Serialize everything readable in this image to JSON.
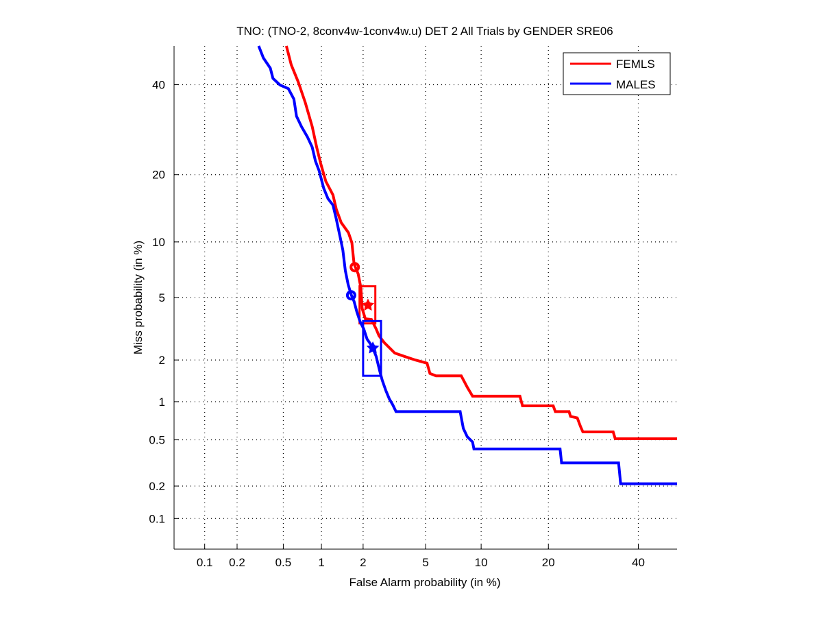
{
  "chart_data": {
    "type": "line",
    "subtype": "DET (probit-scaled axes)",
    "title": "TNO: (TNO-2, 8conv4w-1conv4w.u) DET 2 All Trials by GENDER SRE06",
    "xlabel": "False Alarm probability (in %)",
    "ylabel": "Miss probability (in %)",
    "x_scale": "probit",
    "y_scale": "probit",
    "xlim": [
      0.05,
      50
    ],
    "ylim": [
      0.05,
      50
    ],
    "x_ticks": [
      0.1,
      0.2,
      0.5,
      1,
      2,
      5,
      10,
      20,
      40
    ],
    "x_tick_labels": [
      "0.1",
      "0.2",
      "0.5",
      "1",
      "2",
      "5",
      "10",
      "20",
      "40"
    ],
    "y_ticks": [
      0.1,
      0.2,
      0.5,
      1,
      2,
      5,
      10,
      20,
      40
    ],
    "y_tick_labels": [
      "0.1",
      "0.2",
      "0.5",
      "1",
      "2",
      "5",
      "10",
      "20",
      "40"
    ],
    "grid": true,
    "legend_position": "top-right",
    "series": [
      {
        "name": "FEMLS",
        "color": "#ff0000",
        "x": [
          0.53,
          0.58,
          0.66,
          0.75,
          0.85,
          0.92,
          0.99,
          1.08,
          1.22,
          1.29,
          1.4,
          1.58,
          1.67,
          1.73,
          1.85,
          1.93,
          1.97,
          2.07,
          2.28,
          2.45,
          2.56,
          2.78,
          3.24,
          3.76,
          4.34,
          5.1,
          5.3,
          5.74,
          7.9,
          8.5,
          9.05,
          15.2,
          15.6,
          20.9,
          21.3,
          24.0,
          24.3,
          25.7,
          26.4,
          26.9,
          33.8,
          34.3,
          50
        ],
        "y": [
          50,
          45.1,
          40.7,
          35.6,
          29.9,
          25.4,
          22.0,
          18.8,
          16.5,
          14.3,
          12.4,
          11.1,
          9.9,
          7.7,
          6.8,
          5.7,
          4.3,
          3.72,
          3.68,
          3.21,
          2.9,
          2.61,
          2.23,
          2.11,
          2.0,
          1.9,
          1.61,
          1.55,
          1.55,
          1.28,
          1.1,
          1.1,
          0.93,
          0.93,
          0.84,
          0.84,
          0.77,
          0.75,
          0.64,
          0.58,
          0.58,
          0.51,
          0.51
        ],
        "actual_dcf_point": {
          "x": 1.75,
          "y": 7.4
        },
        "min_dcf_point": {
          "x": 2.16,
          "y": 4.5
        },
        "confidence_box": {
          "x": [
            1.89,
            2.42
          ],
          "y": [
            3.48,
            5.8
          ]
        }
      },
      {
        "name": "MALES",
        "color": "#0000ff",
        "x": [
          0.31,
          0.34,
          0.39,
          0.41,
          0.47,
          0.55,
          0.61,
          0.64,
          0.7,
          0.78,
          0.85,
          0.9,
          0.96,
          1.04,
          1.12,
          1.22,
          1.29,
          1.37,
          1.44,
          1.5,
          1.57,
          1.65,
          1.73,
          1.81,
          1.91,
          2.02,
          2.13,
          2.3,
          2.45,
          2.58,
          2.69,
          2.84,
          2.99,
          3.14,
          3.3,
          7.8,
          8.1,
          8.5,
          9.05,
          9.2,
          22.2,
          22.5,
          35.1,
          35.6,
          50
        ],
        "y": [
          50,
          46.9,
          44.2,
          41.6,
          39.9,
          39.0,
          36.4,
          32.3,
          29.9,
          27.6,
          25.4,
          22.6,
          20.7,
          17.6,
          15.9,
          14.9,
          12.9,
          10.7,
          9.1,
          7.1,
          5.95,
          5.2,
          4.74,
          4.1,
          3.55,
          3.21,
          2.76,
          2.48,
          2.12,
          1.7,
          1.44,
          1.21,
          1.05,
          0.95,
          0.84,
          0.84,
          0.62,
          0.53,
          0.48,
          0.42,
          0.42,
          0.32,
          0.32,
          0.21,
          0.21
        ],
        "actual_dcf_point": {
          "x": 1.65,
          "y": 5.15
        },
        "min_dcf_point": {
          "x": 2.33,
          "y": 2.41
        },
        "confidence_box": {
          "x": [
            2.0,
            2.64
          ],
          "y": [
            1.55,
            3.6
          ]
        }
      }
    ]
  }
}
